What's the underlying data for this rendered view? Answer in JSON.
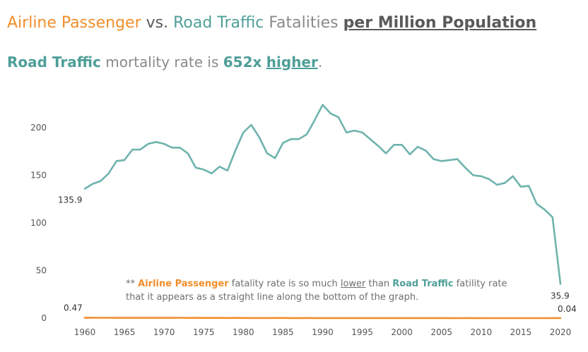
{
  "title": {
    "part1": "Airline Passenger",
    "part2": " vs. ",
    "part3": "Road Traffic",
    "part4": " Fatalities ",
    "part5": "per Million Population"
  },
  "subtitle": {
    "part1": "Road Traffic",
    "part2": " mortality rate is ",
    "part3": "652x",
    "part4": " ",
    "part5": "higher",
    "part6": "."
  },
  "note": {
    "part1": "** ",
    "part2": "Airline Passenger",
    "part3": " fatality rate is so much ",
    "part4": "lower",
    "part5": " than ",
    "part6": "Road Traffic",
    "part7": " fatility rate that it appears as a straight line along the bottom of the graph."
  },
  "colors": {
    "airline": "#f28e2b",
    "road": "#6fb3ad"
  },
  "chart_data": {
    "type": "line",
    "title": "Airline Passenger vs. Road Traffic Fatalities per Million Population",
    "xlabel": "",
    "ylabel": "",
    "xlim": [
      1960,
      2020
    ],
    "ylim": [
      0,
      225
    ],
    "x_ticks": [
      1960,
      1965,
      1970,
      1975,
      1980,
      1985,
      1990,
      1995,
      2000,
      2005,
      2010,
      2015,
      2020
    ],
    "y_ticks": [
      0,
      50,
      100,
      150,
      200
    ],
    "grid": false,
    "x": [
      1960,
      1961,
      1962,
      1963,
      1964,
      1965,
      1966,
      1967,
      1968,
      1969,
      1970,
      1971,
      1972,
      1973,
      1974,
      1975,
      1976,
      1977,
      1978,
      1979,
      1980,
      1981,
      1982,
      1983,
      1984,
      1985,
      1986,
      1987,
      1988,
      1989,
      1990,
      1991,
      1992,
      1993,
      1994,
      1995,
      1996,
      1997,
      1998,
      1999,
      2000,
      2001,
      2002,
      2003,
      2004,
      2005,
      2006,
      2007,
      2008,
      2009,
      2010,
      2011,
      2012,
      2013,
      2014,
      2015,
      2016,
      2017,
      2018,
      2019,
      2020
    ],
    "series": [
      {
        "name": "Road Traffic",
        "values": [
          135.9,
          141,
          144,
          152,
          165,
          166,
          177,
          177,
          183,
          185,
          183,
          179,
          179,
          173,
          158,
          156,
          152,
          159,
          155,
          176,
          195,
          203,
          190,
          173,
          168,
          184,
          188,
          188,
          193,
          208,
          224,
          215,
          211,
          195,
          197,
          195,
          188,
          181,
          173,
          182,
          182,
          172,
          180,
          176,
          167,
          165,
          166,
          167,
          158,
          150,
          149,
          146,
          140,
          142,
          149,
          138,
          139,
          120,
          114,
          106,
          35.9
        ]
      },
      {
        "name": "Airline Passenger",
        "values": [
          0.47,
          0.35,
          0.4,
          0.38,
          0.3,
          0.33,
          0.28,
          0.3,
          0.32,
          0.27,
          0.3,
          0.28,
          0.35,
          0.25,
          0.28,
          0.2,
          0.22,
          0.25,
          0.18,
          0.2,
          0.15,
          0.12,
          0.14,
          0.13,
          0.12,
          0.2,
          0.1,
          0.1,
          0.12,
          0.1,
          0.1,
          0.1,
          0.09,
          0.08,
          0.09,
          0.08,
          0.09,
          0.07,
          0.06,
          0.05,
          0.06,
          0.07,
          0.04,
          0.05,
          0.04,
          0.05,
          0.04,
          0.03,
          0.04,
          0.04,
          0.03,
          0.03,
          0.02,
          0.03,
          0.03,
          0.03,
          0.03,
          0.02,
          0.03,
          0.04,
          0.04
        ]
      }
    ],
    "end_labels": {
      "road_start": "135.9",
      "road_end": "35.9",
      "air_start": "0.47",
      "air_end": "0.04"
    }
  }
}
